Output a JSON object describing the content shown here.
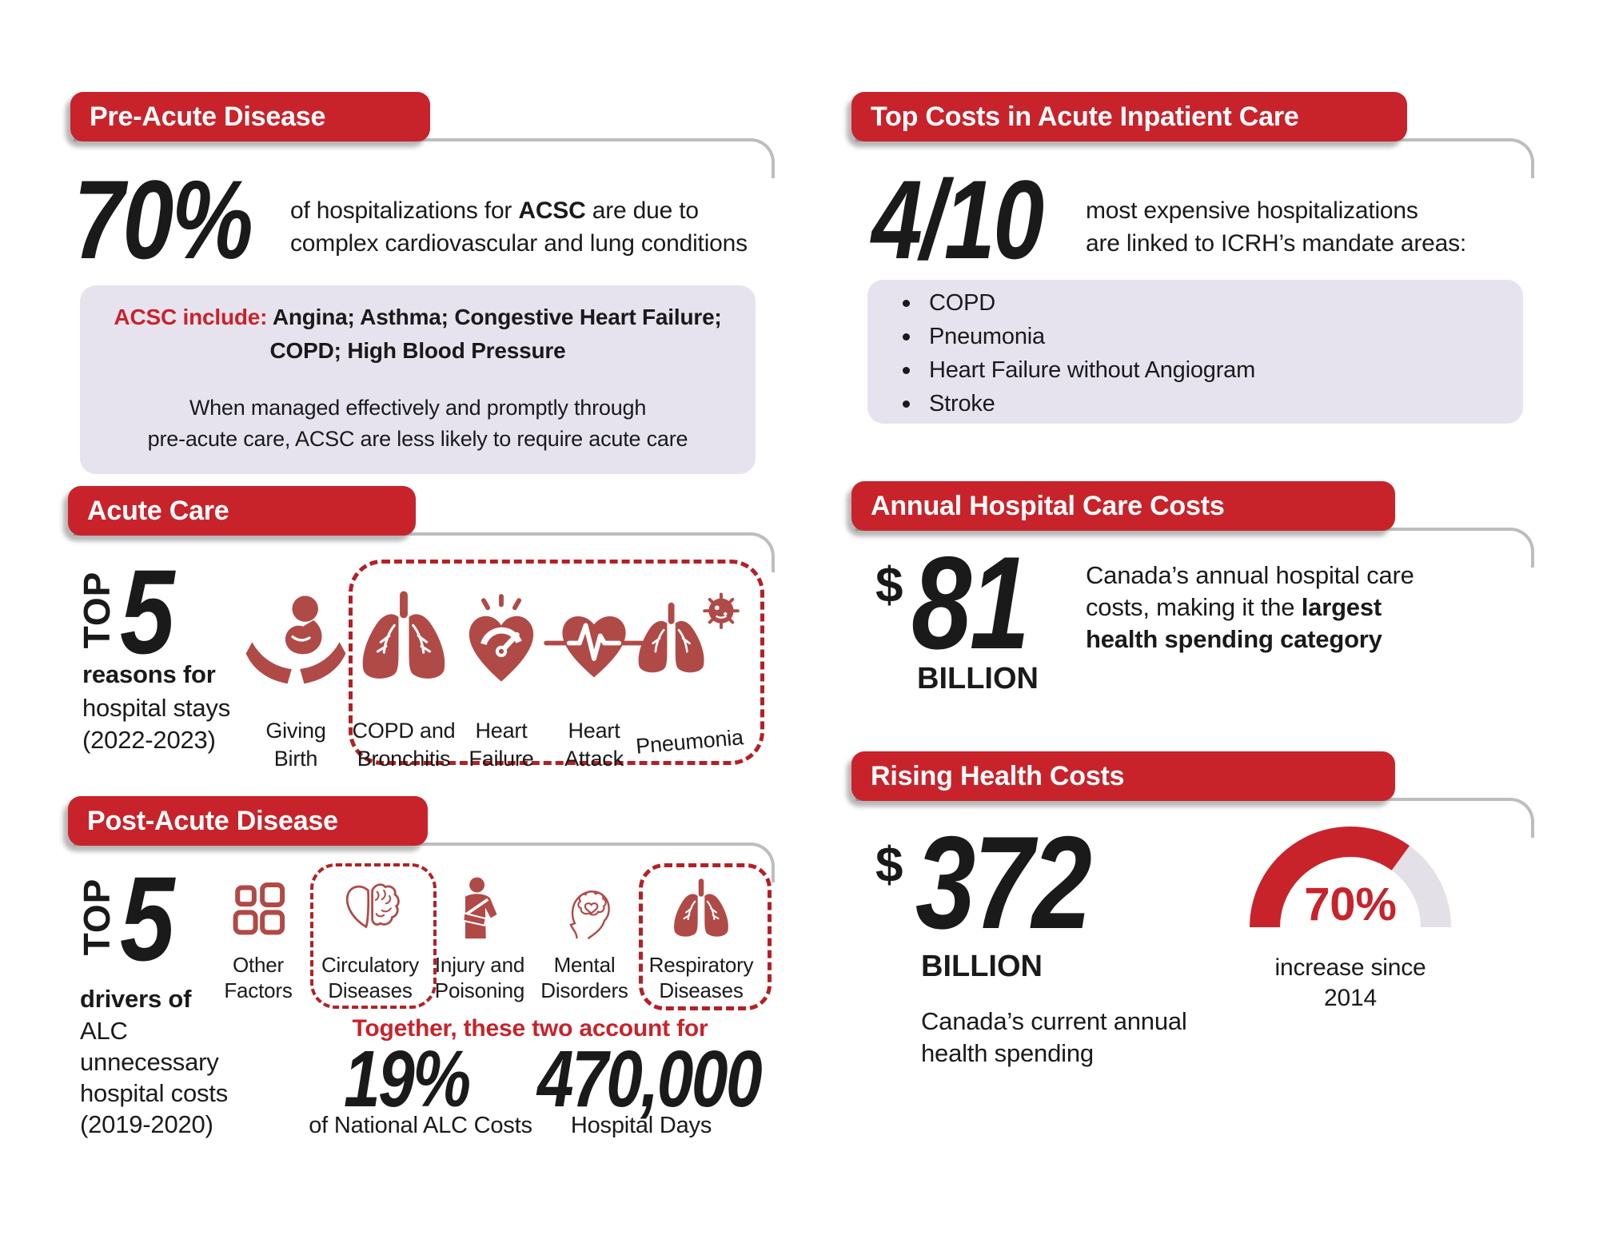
{
  "palette": {
    "red": "#c8232b",
    "icon_maroon": "#b04a47",
    "dash_red": "#b42025",
    "lavender": "#e6e3ef",
    "gray_line": "#bdbdbd",
    "text": "#1a1a1a"
  },
  "left": {
    "pre_acute": {
      "header": "Pre-Acute Disease",
      "stat": "70%",
      "desc_pre": "of hospitalizations for ",
      "desc_bold": "ACSC",
      "desc_post": " are due to",
      "desc_line2": "complex cardiovascular and lung conditions",
      "box": {
        "lead": "ACSC include:",
        "list1": " Angina; Asthma; Congestive Heart Failure;",
        "list2": "COPD;  High Blood Pressure",
        "note1": "When managed effectively and promptly through",
        "note2": "pre-acute care, ACSC are less likely to require acute care"
      }
    },
    "acute": {
      "header": "Acute Care",
      "top_word": "TOP",
      "top_num": "5",
      "reasons": "reasons for",
      "sub1": "hospital stays",
      "sub2": "(2022-2023)",
      "items": [
        {
          "line1": "Giving",
          "line2": "Birth"
        },
        {
          "line1": "COPD and",
          "line2": "Bronchitis"
        },
        {
          "line1": "Heart",
          "line2": "Failure"
        },
        {
          "line1": "Heart",
          "line2": "Attack"
        },
        {
          "line1": "Pneumonia",
          "line2": ""
        }
      ]
    },
    "post_acute": {
      "header": "Post-Acute Disease",
      "top_word": "TOP",
      "top_num": "5",
      "drivers": "drivers of",
      "sub1": "ALC",
      "sub2": "unnecessary",
      "sub3": "hospital costs",
      "sub4": "(2019-2020)",
      "items": [
        {
          "line1": "Other",
          "line2": "Factors"
        },
        {
          "line1": "Circulatory",
          "line2": "Diseases"
        },
        {
          "line1": "Injury and",
          "line2": "Poisoning"
        },
        {
          "line1": "Mental",
          "line2": "Disorders"
        },
        {
          "line1": "Respiratory",
          "line2": "Diseases"
        }
      ],
      "together": "Together, these two account for",
      "stat1": "19%",
      "stat1_label": "of National ALC Costs",
      "stat2": "470,000",
      "stat2_label": "Hospital Days"
    }
  },
  "right": {
    "top_costs": {
      "header": "Top Costs in Acute Inpatient Care",
      "stat": "4/10",
      "desc1": "most expensive hospitalizations",
      "desc2": "are linked to ICRH’s mandate areas:",
      "bullets": [
        "COPD",
        "Pneumonia",
        "Heart Failure without Angiogram",
        "Stroke"
      ]
    },
    "annual": {
      "header": "Annual Hospital Care Costs",
      "currency": "$",
      "stat": "81",
      "unit": "BILLION",
      "desc1": "Canada’s annual hospital care",
      "desc2_pre": "costs, making it the ",
      "desc2_bold": "largest",
      "desc3_bold": "health spending category"
    },
    "rising": {
      "header": "Rising Health Costs",
      "currency": "$",
      "stat": "372",
      "unit": "BILLION",
      "cap1": "Canada’s current annual",
      "cap2": "health spending",
      "gauge_label": "70%",
      "gauge_cap1": "increase since",
      "gauge_cap2": "2014"
    }
  },
  "chart_data": {
    "type": "gauge",
    "title": "Rising Health Costs increase since 2014",
    "value": 70,
    "max": 100,
    "unit": "%",
    "label": "70%",
    "caption": "increase since 2014",
    "shape": "semicircle",
    "color": "#c8232b",
    "track_color": "#e3e0e8"
  }
}
